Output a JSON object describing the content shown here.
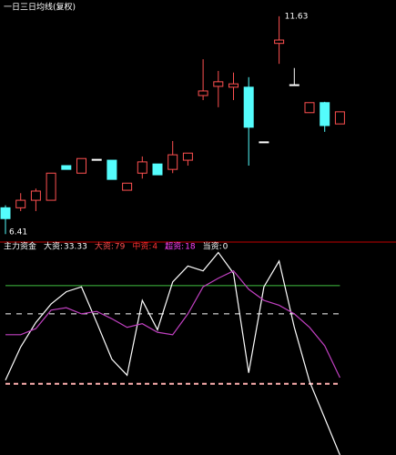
{
  "chart_data": [
    {
      "type": "candlestick",
      "title": "一日三日均线(复权)",
      "open": [
        7.04,
        7.04,
        7.22,
        7.22,
        8.05,
        7.87,
        8.2,
        8.18,
        7.46,
        7.87,
        8.09,
        7.96,
        8.18,
        9.73,
        9.95,
        9.93,
        9.93,
        8.62,
        10.98,
        9.99,
        9.32,
        9.56,
        9.05
      ],
      "high": [
        7.1,
        7.39,
        7.5,
        7.87,
        8.05,
        8.22,
        8.2,
        8.18,
        7.63,
        8.27,
        8.09,
        8.64,
        8.35,
        10.6,
        10.32,
        10.28,
        10.17,
        8.62,
        11.63,
        10.39,
        9.56,
        9.58,
        9.34
      ],
      "low": [
        6.41,
        6.96,
        6.96,
        7.22,
        7.96,
        7.87,
        8.2,
        7.72,
        7.46,
        7.74,
        7.83,
        7.87,
        8.05,
        9.62,
        9.45,
        9.62,
        8.05,
        8.62,
        10.49,
        9.99,
        9.32,
        8.86,
        9.05
      ],
      "close": [
        6.78,
        7.22,
        7.44,
        7.87,
        7.96,
        8.22,
        8.2,
        7.72,
        7.63,
        8.14,
        7.83,
        8.31,
        8.35,
        9.84,
        10.06,
        10.01,
        8.97,
        8.62,
        11.06,
        9.99,
        9.56,
        9.01,
        9.34
      ],
      "up_color": "#ff5050",
      "down_color": "#54fcfc",
      "flat_color": "#ffffff",
      "ylim": [
        6.24,
        12.02
      ]
    },
    {
      "type": "line",
      "title": "主力资金",
      "readouts": [
        {
          "label": "大资:",
          "value": 33.33,
          "color": "#ffffff"
        },
        {
          "label": "大资:",
          "value": 79.0,
          "color": "#ff5050"
        },
        {
          "label": "中资:",
          "value": 4.0,
          "color": "#ff3333"
        },
        {
          "label": "超资:",
          "value": 18.0,
          "color": "#ff44ff"
        },
        {
          "label": "当资:",
          "value": 0.0,
          "color": "#ffffff"
        }
      ],
      "series": [
        {
          "color": "#ffffff",
          "values": [
            3,
            30,
            50,
            65,
            75,
            79,
            50,
            20,
            7,
            68,
            44,
            83,
            96,
            92,
            107,
            90,
            9,
            79,
            100,
            46,
            2,
            -28,
            -58
          ]
        },
        {
          "color": "#c040c0",
          "values": [
            40,
            40,
            45,
            60,
            62,
            57,
            59,
            53,
            46,
            49,
            42,
            40,
            57,
            79,
            86,
            92,
            77,
            68,
            64,
            57,
            46,
            31,
            5
          ]
        }
      ],
      "ref_lines": [
        {
          "value": 80,
          "color": "#40c040"
        },
        {
          "value": 57,
          "color": "#ffffff"
        },
        {
          "value": 0,
          "color": "#ffb0b0"
        }
      ],
      "ylim": [
        -58,
        114
      ]
    }
  ]
}
